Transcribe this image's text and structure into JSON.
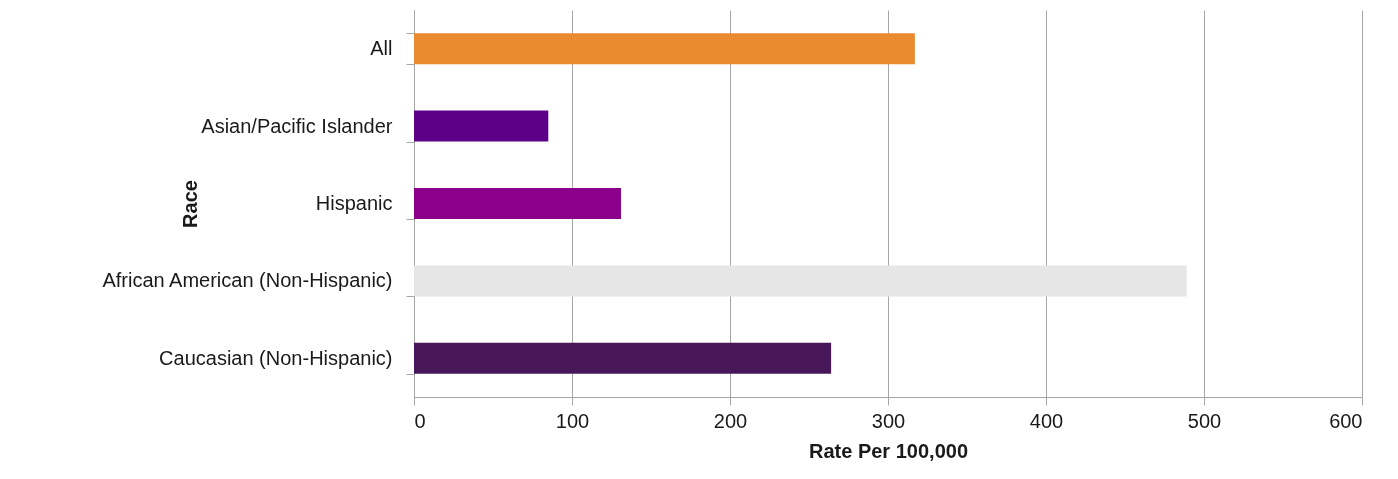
{
  "chart_data": {
    "type": "bar",
    "orientation": "horizontal",
    "xlabel": "Rate Per 100,000",
    "ylabel": "Race",
    "categories": [
      "All",
      "Asian/Pacific Islander",
      "Hispanic",
      "African American (Non-Hispanic)",
      "Caucasian (Non-Hispanic)"
    ],
    "values": [
      317,
      85,
      131,
      489,
      264
    ],
    "colors": [
      "#e98a31",
      "#5b0087",
      "#8b008b",
      "#e6e6e6",
      "#48175a"
    ],
    "xlim": [
      0,
      600
    ],
    "xticks": [
      0,
      100,
      200,
      300,
      400,
      500,
      600
    ],
    "grid": "x"
  }
}
